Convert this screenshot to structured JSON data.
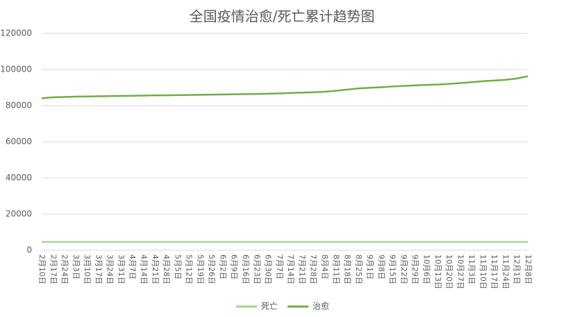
{
  "chart_data": {
    "type": "line",
    "title": "全国疫情治愈/死亡累计趋势图",
    "categories": [
      "2月10日",
      "2月17日",
      "2月24日",
      "3月3日",
      "3月10日",
      "3月17日",
      "3月24日",
      "3月31日",
      "4月7日",
      "4月14日",
      "4月21日",
      "4月28日",
      "5月5日",
      "5月12日",
      "5月19日",
      "5月26日",
      "6月2日",
      "6月9日",
      "6月16日",
      "6月23日",
      "6月30日",
      "7月7日",
      "7月14日",
      "7月21日",
      "7月28日",
      "8月4日",
      "8月11日",
      "8月18日",
      "8月25日",
      "9月1日",
      "9月8日",
      "9月15日",
      "9月22日",
      "9月29日",
      "10月6日",
      "10月13日",
      "10月20日",
      "10月27日",
      "11月3日",
      "11月10日",
      "11月17日",
      "11月24日",
      "12月1日",
      "12月8日"
    ],
    "series": [
      {
        "name": "死亡",
        "color": "#a9d18e",
        "values": [
          4636,
          4636,
          4636,
          4636,
          4636,
          4636,
          4636,
          4636,
          4636,
          4636,
          4636,
          4636,
          4636,
          4636,
          4636,
          4636,
          4636,
          4636,
          4636,
          4636,
          4636,
          4636,
          4636,
          4636,
          4636,
          4636,
          4636,
          4636,
          4636,
          4636,
          4636,
          4636,
          4636,
          4636,
          4636,
          4636,
          4636,
          4636,
          4636,
          4636,
          4636,
          4636,
          4636,
          4636
        ]
      },
      {
        "name": "治愈",
        "color": "#70ad47",
        "values": [
          84100,
          84600,
          84800,
          85000,
          85100,
          85200,
          85300,
          85400,
          85500,
          85600,
          85700,
          85700,
          85800,
          85900,
          86000,
          86100,
          86200,
          86300,
          86400,
          86500,
          86600,
          86800,
          87000,
          87200,
          87400,
          87700,
          88200,
          88900,
          89500,
          89900,
          90200,
          90600,
          90900,
          91200,
          91500,
          91700,
          92000,
          92500,
          93000,
          93500,
          93900,
          94300,
          95000,
          96300
        ]
      }
    ],
    "ylim": [
      0,
      120000
    ],
    "yticks": [
      0,
      20000,
      40000,
      60000,
      80000,
      100000,
      120000
    ],
    "grid": true,
    "legend": "bottom"
  }
}
